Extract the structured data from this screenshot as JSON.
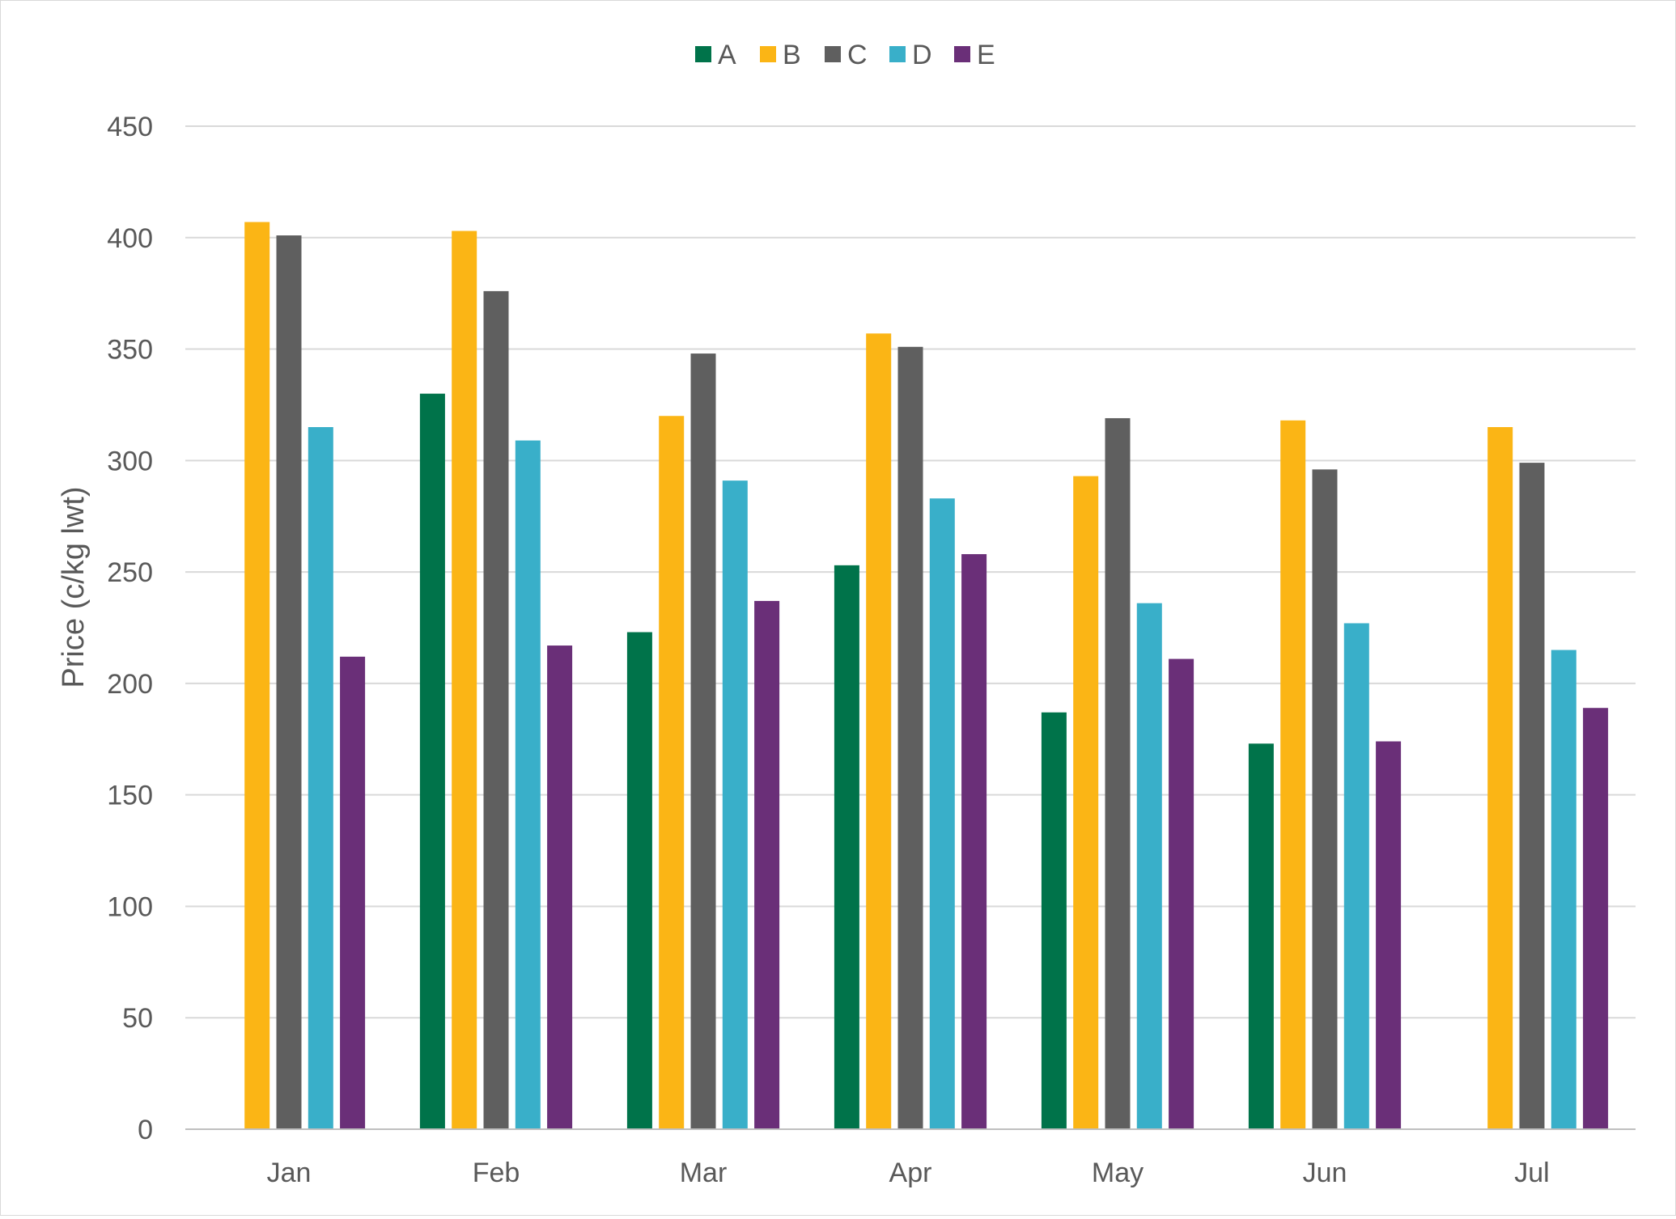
{
  "chart_data": {
    "type": "bar",
    "title": "",
    "xlabel": "",
    "ylabel": "Price (c/kg lwt)",
    "ylim": [
      0,
      450
    ],
    "yticks": [
      0,
      50,
      100,
      150,
      200,
      250,
      300,
      350,
      400,
      450
    ],
    "grid": true,
    "legend_position": "top",
    "categories": [
      "Jan",
      "Feb",
      "Mar",
      "Apr",
      "May",
      "Jun",
      "Jul"
    ],
    "series": [
      {
        "name": "A",
        "color": "#00734a",
        "values": [
          null,
          330,
          223,
          253,
          187,
          173,
          null
        ]
      },
      {
        "name": "B",
        "color": "#fbb515",
        "values": [
          407,
          403,
          320,
          357,
          293,
          318,
          315
        ]
      },
      {
        "name": "C",
        "color": "#5f5f5f",
        "values": [
          401,
          376,
          348,
          351,
          319,
          296,
          299
        ]
      },
      {
        "name": "D",
        "color": "#39afc9",
        "values": [
          315,
          309,
          291,
          283,
          236,
          227,
          215
        ]
      },
      {
        "name": "E",
        "color": "#6a2f78",
        "values": [
          212,
          217,
          237,
          258,
          211,
          174,
          189
        ]
      }
    ]
  }
}
